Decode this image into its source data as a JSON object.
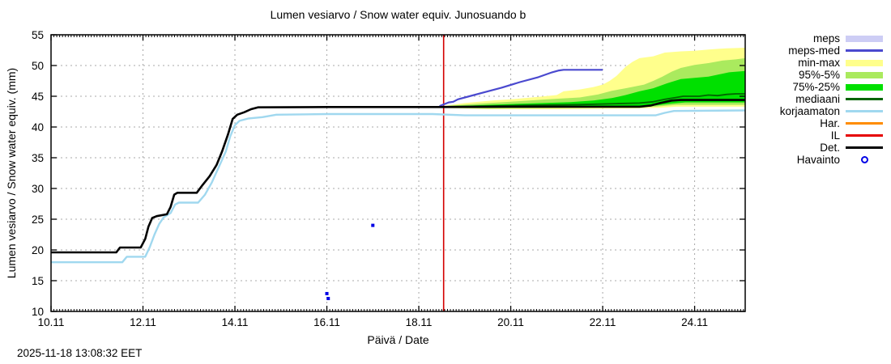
{
  "texts": {
    "title": "Lumen vesiarvo / Snow water equiv.  Junosuando b",
    "ylabel": "Lumen vesiarvo / Snow water equiv. (mm)",
    "xlabel": "Päivä / Date",
    "timestamp": "2025-11-18 13:08:32 EET"
  },
  "legend": {
    "items": [
      {
        "id": "meps",
        "label": "meps",
        "swatch": "band",
        "color": "#cdcdf5"
      },
      {
        "id": "meps-med",
        "label": "meps-med",
        "swatch": "line",
        "color": "#4a49cf"
      },
      {
        "id": "min-max",
        "label": "min-max",
        "swatch": "band",
        "color": "#ffff8c"
      },
      {
        "id": "95-5",
        "label": "95%-5%",
        "swatch": "band",
        "color": "#aaea5e"
      },
      {
        "id": "75-25",
        "label": "75%-25%",
        "swatch": "band",
        "color": "#00e000"
      },
      {
        "id": "mediaani",
        "label": "mediaani",
        "swatch": "line",
        "color": "#006400"
      },
      {
        "id": "korjaamaton",
        "label": "korjaamaton",
        "swatch": "line",
        "color": "#a0d8ef"
      },
      {
        "id": "har",
        "label": "Har.",
        "swatch": "line",
        "color": "#ff8c00"
      },
      {
        "id": "il",
        "label": "IL",
        "swatch": "line",
        "color": "#e60000"
      },
      {
        "id": "det",
        "label": "Det.",
        "swatch": "line",
        "color": "#000000"
      },
      {
        "id": "havainto",
        "label": "Havainto",
        "swatch": "point",
        "color": "#0000e6"
      }
    ]
  },
  "chart_data": {
    "type": "line",
    "title": "Lumen vesiarvo / Snow water equiv.  Junosuando b",
    "xlabel": "Päivä / Date",
    "ylabel": "Lumen vesiarvo / Snow water equiv. (mm)",
    "xlim": [
      10.0,
      25.1
    ],
    "ylim": [
      10,
      55
    ],
    "grid": true,
    "grid_color": "#a8a8a8",
    "xticks": [
      {
        "value": 10,
        "label": "10.11"
      },
      {
        "value": 12,
        "label": "12.11"
      },
      {
        "value": 14,
        "label": "14.11"
      },
      {
        "value": 16,
        "label": "16.11"
      },
      {
        "value": 18,
        "label": "18.11"
      },
      {
        "value": 20,
        "label": "20.11"
      },
      {
        "value": 22,
        "label": "22.11"
      },
      {
        "value": 24,
        "label": "24.11"
      }
    ],
    "yticks": [
      10,
      15,
      20,
      25,
      30,
      35,
      40,
      45,
      50,
      55
    ],
    "x_unit": "day of November (.11)",
    "y_unit": "mm",
    "now_line": {
      "x": 18.54,
      "color": "#d40000"
    },
    "legend_only_series": [
      "meps",
      "Har.",
      "IL"
    ],
    "series": [
      {
        "id": "min-max",
        "name": "min-max",
        "type": "band",
        "color": "#ffff8c",
        "top": [
          [
            18.5,
            43.4
          ],
          [
            19.0,
            43.9
          ],
          [
            19.6,
            44.3
          ],
          [
            20.0,
            44.5
          ],
          [
            20.6,
            44.9
          ],
          [
            21.0,
            45.2
          ],
          [
            21.15,
            45.8
          ],
          [
            21.5,
            46.1
          ],
          [
            21.8,
            46.5
          ],
          [
            22.0,
            46.9
          ],
          [
            22.15,
            47.5
          ],
          [
            22.3,
            48.3
          ],
          [
            22.5,
            49.8
          ],
          [
            22.65,
            50.6
          ],
          [
            22.8,
            51.2
          ],
          [
            23.1,
            51.5
          ],
          [
            23.35,
            52.1
          ],
          [
            23.7,
            52.3
          ],
          [
            24.0,
            52.4
          ],
          [
            24.3,
            52.6
          ],
          [
            24.7,
            52.8
          ],
          [
            25.1,
            52.9
          ]
        ],
        "bottom": [
          [
            18.5,
            43.1
          ],
          [
            19.5,
            42.9
          ],
          [
            21.0,
            42.9
          ],
          [
            22.5,
            43.0
          ],
          [
            23.2,
            43.1
          ],
          [
            23.6,
            43.3
          ],
          [
            25.1,
            43.3
          ]
        ]
      },
      {
        "id": "95-5",
        "name": "95%-5%",
        "type": "band",
        "color": "#aaea5e",
        "top": [
          [
            18.5,
            43.35
          ],
          [
            19.3,
            43.8
          ],
          [
            20.0,
            44.1
          ],
          [
            20.8,
            44.5
          ],
          [
            21.5,
            44.8
          ],
          [
            21.9,
            45.3
          ],
          [
            22.2,
            45.9
          ],
          [
            22.5,
            46.3
          ],
          [
            22.9,
            46.9
          ],
          [
            23.1,
            47.5
          ],
          [
            23.3,
            48.2
          ],
          [
            23.5,
            49.0
          ],
          [
            23.7,
            49.6
          ],
          [
            24.0,
            50.1
          ],
          [
            24.3,
            50.4
          ],
          [
            24.6,
            50.8
          ],
          [
            24.9,
            51.0
          ],
          [
            25.1,
            51.2
          ]
        ],
        "bottom": [
          [
            18.5,
            43.1
          ],
          [
            19.5,
            43.0
          ],
          [
            21.5,
            43.1
          ],
          [
            23.15,
            43.3
          ],
          [
            23.6,
            43.6
          ],
          [
            25.1,
            43.6
          ]
        ]
      },
      {
        "id": "75-25",
        "name": "75%-25%",
        "type": "band",
        "color": "#00e000",
        "top": [
          [
            18.5,
            43.3
          ],
          [
            19.5,
            43.6
          ],
          [
            20.5,
            43.85
          ],
          [
            21.3,
            44.05
          ],
          [
            21.8,
            44.3
          ],
          [
            22.2,
            44.7
          ],
          [
            22.5,
            45.2
          ],
          [
            22.8,
            45.8
          ],
          [
            23.1,
            46.3
          ],
          [
            23.4,
            47.1
          ],
          [
            23.7,
            47.8
          ],
          [
            24.0,
            48.0
          ],
          [
            24.3,
            48.2
          ],
          [
            24.5,
            48.5
          ],
          [
            24.75,
            48.9
          ],
          [
            25.1,
            49.1
          ]
        ],
        "bottom": [
          [
            18.5,
            43.15
          ],
          [
            20.0,
            43.2
          ],
          [
            22.0,
            43.3
          ],
          [
            23.15,
            43.5
          ],
          [
            23.5,
            43.8
          ],
          [
            23.8,
            44.0
          ],
          [
            25.1,
            44.0
          ]
        ]
      },
      {
        "id": "meps-med",
        "name": "meps-med",
        "type": "line",
        "color": "#4a49cf",
        "width": 2.2,
        "points": [
          [
            18.45,
            43.4
          ],
          [
            18.55,
            43.7
          ],
          [
            18.65,
            44.0
          ],
          [
            18.75,
            44.1
          ],
          [
            18.85,
            44.5
          ],
          [
            19.1,
            45.0
          ],
          [
            19.4,
            45.6
          ],
          [
            19.8,
            46.4
          ],
          [
            20.2,
            47.3
          ],
          [
            20.6,
            48.1
          ],
          [
            20.9,
            48.9
          ],
          [
            21.05,
            49.2
          ],
          [
            21.15,
            49.3
          ],
          [
            22.0,
            49.3
          ]
        ]
      },
      {
        "id": "korjaamaton",
        "name": "korjaamaton",
        "type": "line",
        "color": "#a0d8ef",
        "width": 2.4,
        "points": [
          [
            10.0,
            18.0
          ],
          [
            11.55,
            18.0
          ],
          [
            11.65,
            18.9
          ],
          [
            12.05,
            18.9
          ],
          [
            12.15,
            20.5
          ],
          [
            12.25,
            22.5
          ],
          [
            12.35,
            24.2
          ],
          [
            12.45,
            25.3
          ],
          [
            12.6,
            26.0
          ],
          [
            12.7,
            27.4
          ],
          [
            12.78,
            27.7
          ],
          [
            13.2,
            27.7
          ],
          [
            13.35,
            29.0
          ],
          [
            13.5,
            31.0
          ],
          [
            13.65,
            33.5
          ],
          [
            13.8,
            36.0
          ],
          [
            13.9,
            38.5
          ],
          [
            14.0,
            40.3
          ],
          [
            14.1,
            41.0
          ],
          [
            14.3,
            41.4
          ],
          [
            14.6,
            41.6
          ],
          [
            14.9,
            42.0
          ],
          [
            16.0,
            42.1
          ],
          [
            18.3,
            42.1
          ],
          [
            19.0,
            41.9
          ],
          [
            23.15,
            41.9
          ],
          [
            23.35,
            42.3
          ],
          [
            23.55,
            42.6
          ],
          [
            25.1,
            42.7
          ]
        ]
      },
      {
        "id": "mediaani",
        "name": "mediaani",
        "type": "line",
        "color": "#006400",
        "width": 1.8,
        "points": [
          [
            18.5,
            43.3
          ],
          [
            19.5,
            43.4
          ],
          [
            20.5,
            43.55
          ],
          [
            21.5,
            43.65
          ],
          [
            22.3,
            43.8
          ],
          [
            22.8,
            43.9
          ],
          [
            23.1,
            44.1
          ],
          [
            23.35,
            44.5
          ],
          [
            23.6,
            44.8
          ],
          [
            23.75,
            45.0
          ],
          [
            24.1,
            45.0
          ],
          [
            24.3,
            45.2
          ],
          [
            24.5,
            45.1
          ],
          [
            24.7,
            45.3
          ],
          [
            24.9,
            45.4
          ],
          [
            25.1,
            45.4
          ]
        ]
      },
      {
        "id": "det",
        "name": "Det.",
        "type": "line",
        "color": "#000000",
        "width": 2.6,
        "points": [
          [
            10.0,
            19.6
          ],
          [
            11.42,
            19.6
          ],
          [
            11.5,
            20.4
          ],
          [
            11.95,
            20.4
          ],
          [
            12.05,
            21.8
          ],
          [
            12.12,
            23.8
          ],
          [
            12.2,
            25.2
          ],
          [
            12.3,
            25.5
          ],
          [
            12.52,
            25.8
          ],
          [
            12.6,
            27.0
          ],
          [
            12.68,
            29.0
          ],
          [
            12.75,
            29.3
          ],
          [
            13.17,
            29.3
          ],
          [
            13.3,
            30.6
          ],
          [
            13.45,
            32.0
          ],
          [
            13.6,
            33.8
          ],
          [
            13.72,
            36.0
          ],
          [
            13.85,
            38.8
          ],
          [
            13.95,
            41.3
          ],
          [
            14.05,
            42.0
          ],
          [
            14.2,
            42.4
          ],
          [
            14.35,
            42.9
          ],
          [
            14.5,
            43.2
          ],
          [
            16.0,
            43.25
          ],
          [
            18.5,
            43.25
          ],
          [
            20.0,
            43.3
          ],
          [
            22.8,
            43.3
          ],
          [
            23.05,
            43.5
          ],
          [
            23.25,
            43.9
          ],
          [
            23.5,
            44.3
          ],
          [
            23.7,
            44.4
          ],
          [
            25.1,
            44.4
          ]
        ]
      },
      {
        "id": "havainto",
        "name": "Havainto",
        "type": "points",
        "color": "#0000e6",
        "points": [
          [
            16.0,
            12.9
          ],
          [
            16.03,
            12.1
          ],
          [
            17.0,
            24.0
          ]
        ]
      }
    ]
  }
}
